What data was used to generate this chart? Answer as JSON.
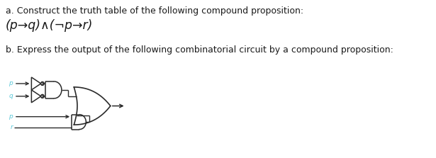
{
  "text_a": "a. Construct the truth table of the following compound proposition:",
  "formula": "(p→q)∧(¬p→r)",
  "text_b": "b. Express the output of the following combinatorial circuit by a compound proposition:",
  "bg_color": "#ffffff",
  "text_color": "#1a1a1a",
  "label_color": "#5bc8d8",
  "circuit_color": "#2a2a2a",
  "font_size_text": 9.0,
  "font_size_formula": 12.5,
  "font_size_label": 6.5,
  "fig_width": 6.15,
  "fig_height": 2.23,
  "dpi": 100
}
